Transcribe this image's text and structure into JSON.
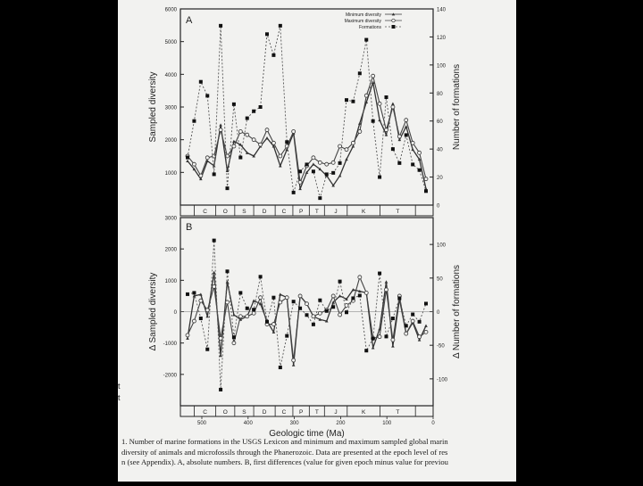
{
  "chart_data": [
    {
      "panel": "A",
      "type": "line",
      "x": [
        1,
        2,
        3,
        4,
        5,
        6,
        7,
        8,
        9,
        10,
        11,
        12,
        13,
        14,
        15,
        16,
        17,
        18,
        19,
        20,
        21,
        22,
        23,
        24,
        25,
        26,
        27,
        28,
        29,
        30,
        31,
        32,
        33,
        34,
        35,
        36,
        37
      ],
      "ylabel": "Sampled diversity",
      "y2label": "Number of formations",
      "ylim": [
        0,
        6000
      ],
      "y2lim": [
        0,
        140
      ],
      "yticks": [
        "1000",
        "2000",
        "3000",
        "4000",
        "5000",
        "6000"
      ],
      "y2ticks": [
        "0",
        "20",
        "40",
        "60",
        "80",
        "100",
        "120",
        "140"
      ],
      "legend": [
        "Minimum diversity",
        "Maximum diversity",
        "Formations"
      ],
      "series": [
        {
          "name": "Minimum diversity",
          "axis": "left",
          "values": [
            1350,
            1100,
            800,
            1350,
            1200,
            2450,
            1050,
            1950,
            1850,
            1600,
            1500,
            1800,
            2050,
            1800,
            1200,
            1700,
            2200,
            500,
            1000,
            1250,
            1100,
            900,
            600,
            900,
            1400,
            1800,
            2500,
            3150,
            3750,
            2600,
            2150,
            3100,
            2000,
            2400,
            1700,
            1400,
            500
          ]
        },
        {
          "name": "Maximum diversity",
          "axis": "left",
          "values": [
            1500,
            1250,
            900,
            1450,
            1500,
            2300,
            1500,
            1800,
            2250,
            2150,
            2000,
            1850,
            2300,
            1900,
            1500,
            1800,
            2250,
            700,
            1200,
            1450,
            1300,
            1250,
            1300,
            1800,
            1700,
            1900,
            2250,
            3350,
            3950,
            3100,
            2300,
            3000,
            2100,
            2600,
            1900,
            1600,
            800
          ]
        },
        {
          "name": "Formations",
          "axis": "right",
          "values": [
            34,
            60,
            88,
            78,
            22,
            128,
            12,
            72,
            34,
            62,
            67,
            70,
            122,
            107,
            128,
            45,
            9,
            24,
            29,
            24,
            5,
            22,
            23,
            30,
            75,
            74,
            94,
            118,
            60,
            20,
            77,
            40,
            30,
            50,
            29,
            25,
            10
          ]
        }
      ]
    },
    {
      "panel": "B",
      "type": "line",
      "x": [
        1,
        2,
        3,
        4,
        5,
        6,
        7,
        8,
        9,
        10,
        11,
        12,
        13,
        14,
        15,
        16,
        17,
        18,
        19,
        20,
        21,
        22,
        23,
        24,
        25,
        26,
        27,
        28,
        29,
        30,
        31,
        32,
        33,
        34,
        35,
        36,
        37
      ],
      "ylabel": "Δ Sampled diversity",
      "y2label": "Δ Number of formations",
      "xlabel": "Geologic time (Ma)",
      "ylim": [
        -3000,
        3000
      ],
      "y2lim": [
        -140,
        140
      ],
      "yticks": [
        "-2000",
        "-1000",
        "0",
        "1000",
        "2000",
        "3000"
      ],
      "y2ticks": [
        "-100",
        "-50",
        "0",
        "50",
        "100"
      ],
      "xticks": [
        "500",
        "400",
        "300",
        "200",
        "100",
        "0"
      ],
      "series": [
        {
          "name": "Δ Minimum diversity",
          "axis": "left",
          "values": [
            -850,
            500,
            550,
            -150,
            1250,
            -1400,
            950,
            -100,
            -250,
            -150,
            350,
            250,
            -300,
            -650,
            550,
            450,
            -1700,
            500,
            250,
            -150,
            -250,
            -300,
            300,
            500,
            400,
            700,
            650,
            600,
            -1150,
            -550,
            950,
            -1100,
            400,
            -700,
            -350,
            -900,
            -450
          ]
        },
        {
          "name": "Δ Maximum diversity",
          "axis": "left",
          "values": [
            -750,
            -300,
            350,
            50,
            800,
            -850,
            300,
            -1000,
            -150,
            -150,
            -50,
            450,
            -400,
            -400,
            300,
            450,
            -1550,
            500,
            250,
            -150,
            -50,
            50,
            500,
            -100,
            200,
            350,
            1100,
            600,
            -850,
            -800,
            700,
            -900,
            500,
            -700,
            -300,
            -800,
            -650
          ]
        },
        {
          "name": "Δ Formations",
          "axis": "right",
          "values": [
            26,
            28,
            -10,
            -56,
            106,
            -116,
            60,
            -38,
            28,
            5,
            3,
            52,
            -15,
            21,
            -83,
            -36,
            15,
            5,
            -5,
            -19,
            17,
            1,
            7,
            45,
            -1,
            20,
            24,
            -58,
            -40,
            57,
            -37,
            -10,
            20,
            -21,
            -4,
            -15,
            12
          ]
        }
      ],
      "period_labels": [
        "C",
        "O",
        "S",
        "D",
        "C",
        "P",
        "T",
        "J",
        "K",
        "T"
      ]
    }
  ],
  "caption": {
    "lines": [
      "1.   Number of marine formations in the USGS Lexicon and minimum and maximum sampled global marin",
      "diversity of animals and microfossils through the Phanerozoic. Data are presented at the epoch level of res",
      "n (see Appendix). A, absolute numbers. B, first differences (value for given epoch minus value for previou"
    ]
  },
  "side_marks": [
    "t",
    "t"
  ]
}
